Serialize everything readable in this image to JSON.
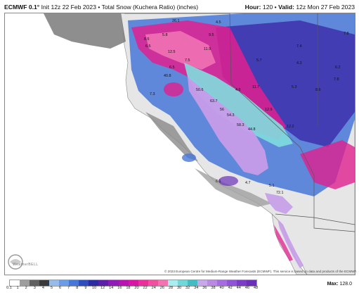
{
  "header": {
    "model": "ECMWF 0.1°",
    "init_text": "Init 12z 22 Feb 2023 • Total Snow (Kuchera Ratio) (inches)",
    "hour_label": "Hour:",
    "hour_value": "120",
    "valid_label": "Valid:",
    "valid_value": "12z Mon 27 Feb 2023"
  },
  "credit": "© 2023 European Centre for Medium-Range Weather Forecasts (ECMWF). This service is based on data and products of the ECMWF.",
  "logo": {
    "icon": "weatherbell-logo",
    "text": "WeatherBELL"
  },
  "colorbar": {
    "colors": [
      "#ffffff",
      "#9e9e9e",
      "#606060",
      "#3a3a3a",
      "#99bbe8",
      "#6c9ce3",
      "#4777d8",
      "#2f4fc1",
      "#2d2ca0",
      "#5b22a9",
      "#8e1cb5",
      "#b813b0",
      "#d915a6",
      "#ea2f9b",
      "#f14f9f",
      "#f572b2",
      "#a9eeee",
      "#6fd8d8",
      "#43bdc4",
      "#c8a8ec",
      "#b88ae6",
      "#a56de0",
      "#9054d6",
      "#7b3dc8",
      "#6a30b8"
    ],
    "ticks": [
      "0.1",
      "1",
      "2",
      "3",
      "4",
      "5",
      "6",
      "7",
      "8",
      "9",
      "10",
      "12",
      "14",
      "16",
      "18",
      "20",
      "22",
      "24",
      "26",
      "28",
      "30",
      "32",
      "34",
      "36",
      "38",
      "40",
      "42",
      "44",
      "46",
      "48"
    ]
  },
  "max": {
    "label": "Max:",
    "value": "128.0"
  },
  "map_values": [
    "4.5",
    "26.1",
    "5.8",
    "8.5",
    "6.5",
    "9.5",
    "11.9",
    "7.4",
    "7.8",
    "6.2",
    "5.7",
    "4.3",
    "7.8",
    "12.5",
    "6.5",
    "7.5",
    "11.7",
    "5.3",
    "50.6",
    "40.8",
    "4.6",
    "8.6",
    "7.3",
    "63.7",
    "56",
    "54.3",
    "12.9",
    "58.3",
    "44.8",
    "12.2",
    "5.1",
    "72.1",
    "6.1",
    "4.7"
  ]
}
